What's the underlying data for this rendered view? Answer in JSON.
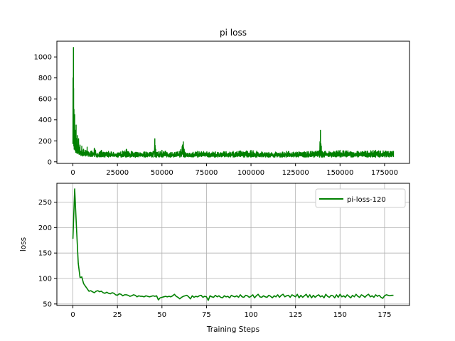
{
  "figure": {
    "background": "#ffffff"
  },
  "chart_data": [
    {
      "type": "line",
      "title": "pi loss",
      "xlabel": "",
      "ylabel": "",
      "grid": false,
      "legend": null,
      "xlim": [
        -9000,
        189000
      ],
      "ylim": [
        -15,
        1150
      ],
      "xticks": [
        0,
        25000,
        50000,
        75000,
        100000,
        125000,
        150000,
        175000
      ],
      "xtick_labels": [
        "0",
        "25000",
        "50000",
        "75000",
        "100000",
        "125000",
        "150000",
        "175000"
      ],
      "yticks": [
        0,
        200,
        400,
        600,
        800,
        1000
      ],
      "ytick_labels": [
        "0",
        "200",
        "400",
        "600",
        "800",
        "1000"
      ],
      "series": [
        {
          "color": "#008000",
          "description": "noisy raw per-step loss",
          "x": [
            0,
            100,
            200,
            300,
            400,
            500,
            600,
            700,
            800,
            900,
            1000,
            1200,
            1400,
            1600,
            1800,
            2000,
            2300,
            2600,
            2900,
            3200,
            3500,
            4000,
            4500,
            5000,
            5500,
            6000,
            7000,
            8000,
            9000,
            10000,
            12000,
            14000,
            16000,
            18000,
            20000,
            25000,
            30000,
            35000,
            40000,
            45000,
            46000,
            46500,
            47000,
            50000,
            55000,
            60000,
            62000,
            62500,
            63000,
            70000,
            80000,
            90000,
            100000,
            110000,
            120000,
            130000,
            138500,
            139000,
            139500,
            140000,
            150000,
            160000,
            170000,
            180000
          ],
          "y": [
            170,
            800,
            400,
            1090,
            700,
            300,
            500,
            250,
            400,
            320,
            450,
            250,
            300,
            180,
            350,
            200,
            150,
            250,
            180,
            220,
            130,
            160,
            100,
            150,
            90,
            120,
            110,
            140,
            90,
            100,
            130,
            80,
            110,
            90,
            100,
            85,
            120,
            90,
            95,
            100,
            220,
            120,
            90,
            110,
            90,
            100,
            190,
            120,
            90,
            100,
            95,
            100,
            110,
            90,
            100,
            95,
            110,
            300,
            150,
            100,
            110,
            100,
            110,
            100
          ],
          "baseline": [
            170,
            400,
            180,
            500,
            300,
            150,
            200,
            120,
            150,
            130,
            160,
            110,
            120,
            90,
            120,
            90,
            80,
            90,
            80,
            85,
            70,
            75,
            60,
            65,
            55,
            60,
            55,
            55,
            50,
            50,
            50,
            45,
            48,
            45,
            45,
            45,
            45,
            42,
            45,
            45,
            50,
            45,
            45,
            45,
            45,
            45,
            50,
            45,
            45,
            45,
            45,
            45,
            45,
            45,
            45,
            45,
            45,
            60,
            45,
            45,
            45,
            45,
            45,
            45
          ]
        }
      ]
    },
    {
      "type": "line",
      "title": "",
      "xlabel": "Training Steps",
      "ylabel": "loss",
      "grid": true,
      "legend": "top-right",
      "xlim": [
        -9,
        189
      ],
      "ylim": [
        47,
        287
      ],
      "xticks": [
        0,
        25,
        50,
        75,
        100,
        125,
        150,
        175
      ],
      "xtick_labels": [
        "0",
        "25",
        "50",
        "75",
        "100",
        "125",
        "150",
        "175"
      ],
      "yticks": [
        50,
        100,
        150,
        200,
        250
      ],
      "ytick_labels": [
        "50",
        "100",
        "150",
        "200",
        "250"
      ],
      "series": [
        {
          "name": "pi-loss-120",
          "color": "#008000",
          "x": [
            0,
            1,
            2,
            3,
            4,
            5,
            6,
            7,
            8,
            9,
            10,
            11,
            12,
            13,
            14,
            15,
            16,
            17,
            18,
            19,
            20,
            21,
            22,
            23,
            24,
            25,
            26,
            27,
            28,
            29,
            30,
            31,
            32,
            33,
            34,
            35,
            36,
            37,
            38,
            39,
            40,
            41,
            42,
            43,
            44,
            45,
            46,
            47,
            48,
            49,
            50,
            51,
            52,
            53,
            54,
            55,
            56,
            57,
            58,
            59,
            60,
            61,
            62,
            63,
            64,
            65,
            66,
            67,
            68,
            69,
            70,
            71,
            72,
            73,
            74,
            75,
            76,
            77,
            78,
            79,
            80,
            81,
            82,
            83,
            84,
            85,
            86,
            87,
            88,
            89,
            90,
            91,
            92,
            93,
            94,
            95,
            96,
            97,
            98,
            99,
            100,
            101,
            102,
            103,
            104,
            105,
            106,
            107,
            108,
            109,
            110,
            111,
            112,
            113,
            114,
            115,
            116,
            117,
            118,
            119,
            120,
            121,
            122,
            123,
            124,
            125,
            126,
            127,
            128,
            129,
            130,
            131,
            132,
            133,
            134,
            135,
            136,
            137,
            138,
            139,
            140,
            141,
            142,
            143,
            144,
            145,
            146,
            147,
            148,
            149,
            150,
            151,
            152,
            153,
            154,
            155,
            156,
            157,
            158,
            159,
            160,
            161,
            162,
            163,
            164,
            165,
            166,
            167,
            168,
            169,
            170,
            171,
            172,
            173,
            174,
            175,
            176,
            177,
            178,
            179,
            180
          ],
          "y": [
            178,
            276,
            200,
            130,
            102,
            103,
            90,
            85,
            80,
            75,
            76,
            74,
            72,
            75,
            76,
            74,
            75,
            72,
            71,
            73,
            71,
            70,
            72,
            71,
            68,
            67,
            70,
            69,
            66,
            68,
            68,
            67,
            65,
            66,
            68,
            67,
            64,
            66,
            65,
            65,
            64,
            66,
            65,
            64,
            65,
            66,
            65,
            66,
            58,
            62,
            63,
            64,
            65,
            64,
            65,
            64,
            66,
            69,
            65,
            63,
            60,
            63,
            65,
            66,
            67,
            64,
            60,
            66,
            63,
            65,
            64,
            66,
            67,
            63,
            65,
            64,
            57,
            66,
            64,
            63,
            67,
            64,
            66,
            63,
            62,
            66,
            64,
            65,
            62,
            67,
            65,
            64,
            66,
            63,
            68,
            64,
            63,
            67,
            66,
            63,
            65,
            68,
            62,
            66,
            69,
            64,
            63,
            66,
            64,
            63,
            67,
            65,
            62,
            66,
            64,
            68,
            63,
            67,
            69,
            64,
            66,
            67,
            63,
            68,
            66,
            64,
            69,
            62,
            67,
            63,
            66,
            69,
            63,
            68,
            62,
            67,
            63,
            66,
            68,
            64,
            66,
            62,
            69,
            65,
            63,
            67,
            66,
            62,
            68,
            63,
            69,
            64,
            66,
            63,
            68,
            65,
            62,
            67,
            64,
            69,
            65,
            63,
            68,
            66,
            63,
            67,
            69,
            64,
            66,
            63,
            68,
            65,
            67,
            63,
            61,
            66,
            68,
            67,
            66,
            67,
            67
          ]
        }
      ]
    }
  ]
}
